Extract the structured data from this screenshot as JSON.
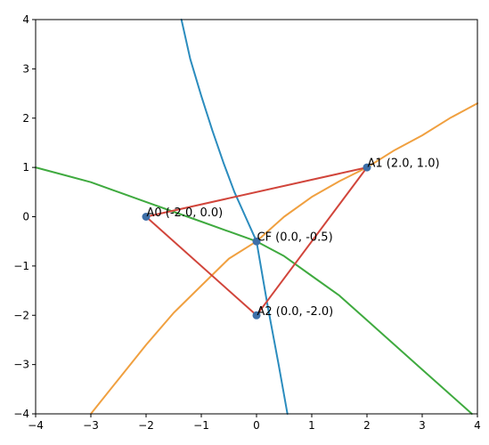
{
  "chart_data": {
    "type": "line",
    "title": "",
    "xlabel": "",
    "ylabel": "",
    "xlim": [
      -4,
      4
    ],
    "ylim": [
      -4,
      4
    ],
    "x_ticks": [
      -4,
      -3,
      -2,
      -1,
      0,
      1,
      2,
      3,
      4
    ],
    "y_ticks": [
      -4,
      -3,
      -2,
      -1,
      0,
      1,
      2,
      3,
      4
    ],
    "grid": false,
    "legend": "none",
    "triangle": {
      "color": "#d1453b",
      "vertices": [
        [
          -2.0,
          0.0
        ],
        [
          2.0,
          1.0
        ],
        [
          0.0,
          -2.0
        ]
      ]
    },
    "points": [
      {
        "label": "A0 (-2.0, 0.0)",
        "x": -2.0,
        "y": 0.0
      },
      {
        "label": "A1 (2.0, 1.0)",
        "x": 2.0,
        "y": 1.0
      },
      {
        "label": "A2 (0.0, -2.0)",
        "x": 0.0,
        "y": -2.0
      },
      {
        "label": "CF (0.0, -0.5)",
        "x": 0.0,
        "y": -0.5
      }
    ],
    "point_color": "#3d6fa8",
    "series": [
      {
        "color": "#2b8cbe",
        "x": [
          -1.36,
          -1.2,
          -1.0,
          -0.8,
          -0.6,
          -0.4,
          -0.2,
          0.0,
          0.2,
          0.4,
          0.56
        ],
        "y": [
          4.0,
          3.2,
          2.45,
          1.75,
          1.1,
          0.5,
          0.0,
          -0.5,
          -1.8,
          -3.0,
          -4.0
        ]
      },
      {
        "color": "#f0a040",
        "x": [
          -3.0,
          -2.5,
          -2.0,
          -1.5,
          -1.0,
          -0.5,
          0.0,
          0.5,
          1.0,
          1.5,
          2.0,
          2.5,
          3.0,
          3.5,
          4.0
        ],
        "y": [
          -4.0,
          -3.3,
          -2.6,
          -1.95,
          -1.4,
          -0.85,
          -0.5,
          0.0,
          0.4,
          0.72,
          1.0,
          1.35,
          1.65,
          2.0,
          2.3
        ]
      },
      {
        "color": "#3faa3f",
        "x": [
          -4.0,
          -3.5,
          -3.0,
          -2.5,
          -2.0,
          -1.5,
          -1.0,
          -0.5,
          0.0,
          0.5,
          1.0,
          1.5,
          2.0,
          2.5,
          3.0,
          3.5,
          3.9
        ],
        "y": [
          1.0,
          0.85,
          0.7,
          0.5,
          0.3,
          0.1,
          -0.1,
          -0.3,
          -0.5,
          -0.8,
          -1.2,
          -1.6,
          -2.1,
          -2.6,
          -3.1,
          -3.6,
          -4.0
        ]
      }
    ]
  }
}
